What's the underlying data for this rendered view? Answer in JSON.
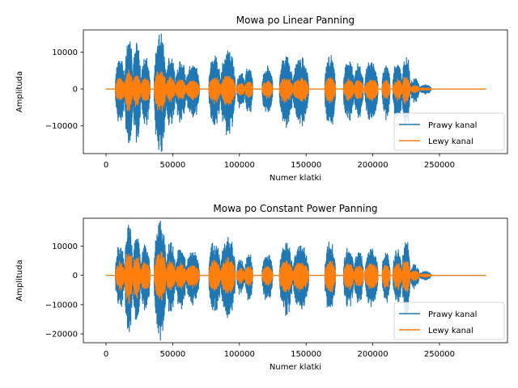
{
  "chart_data": [
    {
      "type": "line",
      "title": "Mowa po Linear Panning",
      "xlabel": "Numer klatki",
      "ylabel": "Amplituda",
      "xlim": [
        -17000,
        301000
      ],
      "ylim": [
        -17500,
        16000
      ],
      "xticks": [
        0,
        50000,
        100000,
        150000,
        200000,
        250000
      ],
      "xtick_labels": [
        "0",
        "50000",
        "100000",
        "150000",
        "200000",
        "250000"
      ],
      "yticks": [
        -10000,
        0,
        10000
      ],
      "ytick_labels": [
        "−10000",
        "0",
        "10000"
      ],
      "grid": false,
      "legend": "lower-right",
      "series": [
        {
          "name": "Prawy kanal",
          "color": "#1f77b4",
          "peak": 14500
        },
        {
          "name": "Lewy kanal",
          "color": "#ff7f0e",
          "peak": 5200
        }
      ]
    },
    {
      "type": "line",
      "title": "Mowa po Constant Power Panning",
      "xlabel": "Numer klatki",
      "ylabel": "Amplituda",
      "xlim": [
        -17000,
        301000
      ],
      "ylim": [
        -23000,
        19500
      ],
      "xticks": [
        0,
        50000,
        100000,
        150000,
        200000,
        250000
      ],
      "xtick_labels": [
        "0",
        "50000",
        "100000",
        "150000",
        "200000",
        "250000"
      ],
      "yticks": [
        -20000,
        -10000,
        0,
        10000
      ],
      "ytick_labels": [
        "−20000",
        "−10000",
        "0",
        "10000"
      ],
      "grid": false,
      "legend": "lower-right",
      "series": [
        {
          "name": "Prawy kanal",
          "color": "#1f77b4",
          "peak": 18000
        },
        {
          "name": "Lewy kanal",
          "color": "#ff7f0e",
          "peak": 8000
        }
      ]
    }
  ]
}
